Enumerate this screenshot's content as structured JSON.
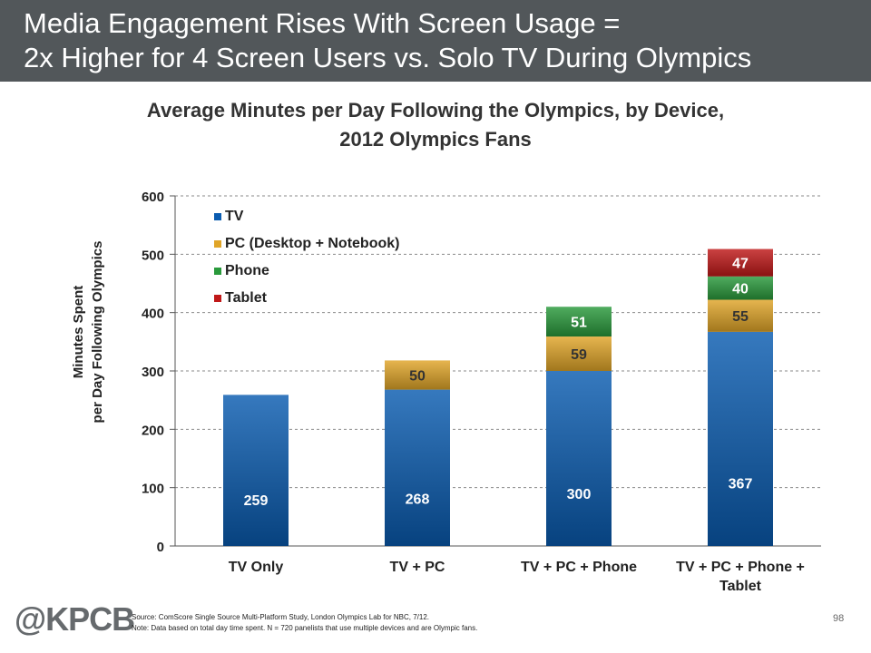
{
  "header": {
    "line1": "Media Engagement Rises With Screen Usage =",
    "line2": "2x Higher for 4 Screen Users vs. Solo TV During Olympics",
    "background": "#52575a"
  },
  "chart_data": {
    "type": "bar",
    "stacked": true,
    "title": "Average Minutes per Day Following the Olympics, by Device,",
    "subtitle": "2012 Olympics Fans",
    "xlabel": "",
    "ylabel": "Minutes Spent per Day Following Olympics",
    "ylabel_lines": [
      "Minutes Spent",
      "per Day Following Olympics"
    ],
    "categories": [
      "TV Only",
      "TV + PC",
      "TV + PC + Phone",
      "TV + PC + Phone + Tablet"
    ],
    "category_lines": [
      [
        "TV Only"
      ],
      [
        "TV + PC"
      ],
      [
        "TV + PC + Phone"
      ],
      [
        "TV + PC + Phone +",
        "Tablet"
      ]
    ],
    "series": [
      {
        "name": "TV",
        "color": "#0a5cb0",
        "values": [
          259,
          268,
          300,
          367
        ]
      },
      {
        "name": "PC (Desktop + Notebook)",
        "color": "#e0a528",
        "values": [
          null,
          50,
          59,
          55
        ]
      },
      {
        "name": "Phone",
        "color": "#2a9a3c",
        "values": [
          null,
          null,
          51,
          40
        ]
      },
      {
        "name": "Tablet",
        "color": "#c01818",
        "values": [
          null,
          null,
          null,
          47
        ]
      }
    ],
    "ylim": [
      0,
      600
    ],
    "yticks": [
      0,
      100,
      200,
      300,
      400,
      500,
      600
    ],
    "grid": true,
    "legend_position": "top-left"
  },
  "footer": {
    "logo": "@KPCB",
    "source": "Source: ComScore Single Source Multi-Platform Study, London Olympics Lab for NBC, 7/12.",
    "note": "Note: Data based on total day time spent. N = 720 panelists that use multiple devices and are Olympic fans.",
    "page_number": "98"
  }
}
